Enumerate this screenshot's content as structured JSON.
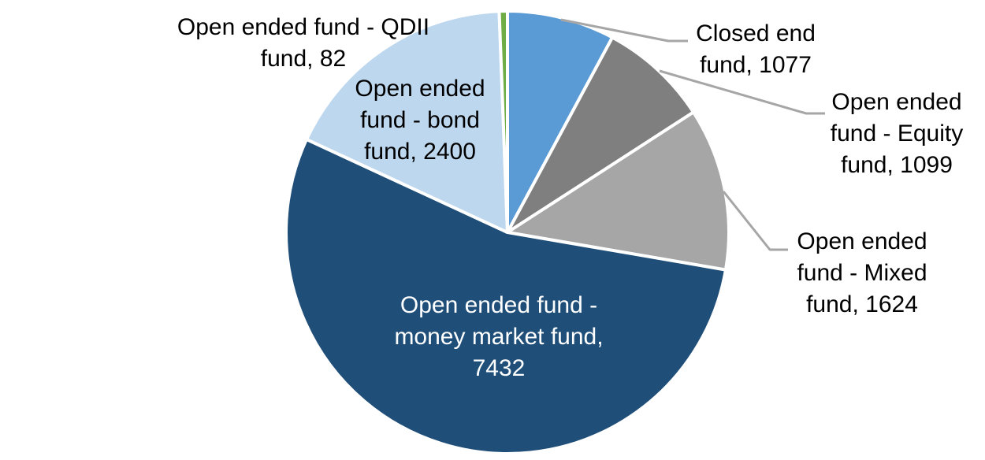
{
  "figure": {
    "background": "#FFFFFF",
    "border_color": "#FFFFFF"
  },
  "chart_data": {
    "type": "pie",
    "title": "",
    "legend": "none",
    "total": 13714,
    "start_angle_deg": 0,
    "direction": "clockwise",
    "slice_border_color": "#FFFFFF",
    "leader_line_color": "#A6A6A6",
    "data_label_format": "category name, value",
    "slices": [
      {
        "id": "closed-end-fund",
        "label": "Closed end fund",
        "value": 1077,
        "color": "#5B9BD5",
        "label_placement": "outside-right",
        "label_color": "#000000"
      },
      {
        "id": "open-ended-equity-fund",
        "label": "Open ended fund - Equity fund",
        "value": 1099,
        "color": "#7F7F7F",
        "label_placement": "outside-right",
        "label_color": "#000000"
      },
      {
        "id": "open-ended-mixed-fund",
        "label": "Open ended fund - Mixed fund",
        "value": 1624,
        "color": "#A6A6A6",
        "label_placement": "outside-right",
        "label_color": "#000000"
      },
      {
        "id": "open-ended-money-market-fund",
        "label": "Open ended fund - money market fund",
        "value": 7432,
        "color": "#1F4E79",
        "label_placement": "inside",
        "label_color": "#FFFFFF"
      },
      {
        "id": "open-ended-bond-fund",
        "label": "Open ended fund - bond fund",
        "value": 2400,
        "color": "#BDD7EE",
        "label_placement": "inside",
        "label_color": "#000000"
      },
      {
        "id": "open-ended-qdii-fund",
        "label": "Open ended fund - QDII fund",
        "value": 82,
        "color": "#70AD47",
        "label_placement": "outside-left",
        "label_color": "#000000"
      }
    ]
  },
  "labels": {
    "qdii": {
      "lines": [
        "Open ended fund - QDII",
        "fund, 82"
      ]
    },
    "bond": {
      "lines": [
        "Open ended",
        "fund - bond",
        "fund, 2400"
      ]
    },
    "money_market": {
      "lines": [
        "Open ended fund -",
        "money market fund,",
        "7432"
      ]
    },
    "closed_end": {
      "lines": [
        "Closed end",
        "fund, 1077"
      ]
    },
    "equity": {
      "lines": [
        "Open ended",
        "fund - Equity",
        "fund, 1099"
      ]
    },
    "mixed": {
      "lines": [
        "Open ended",
        "fund - Mixed",
        "fund, 1624"
      ]
    }
  }
}
